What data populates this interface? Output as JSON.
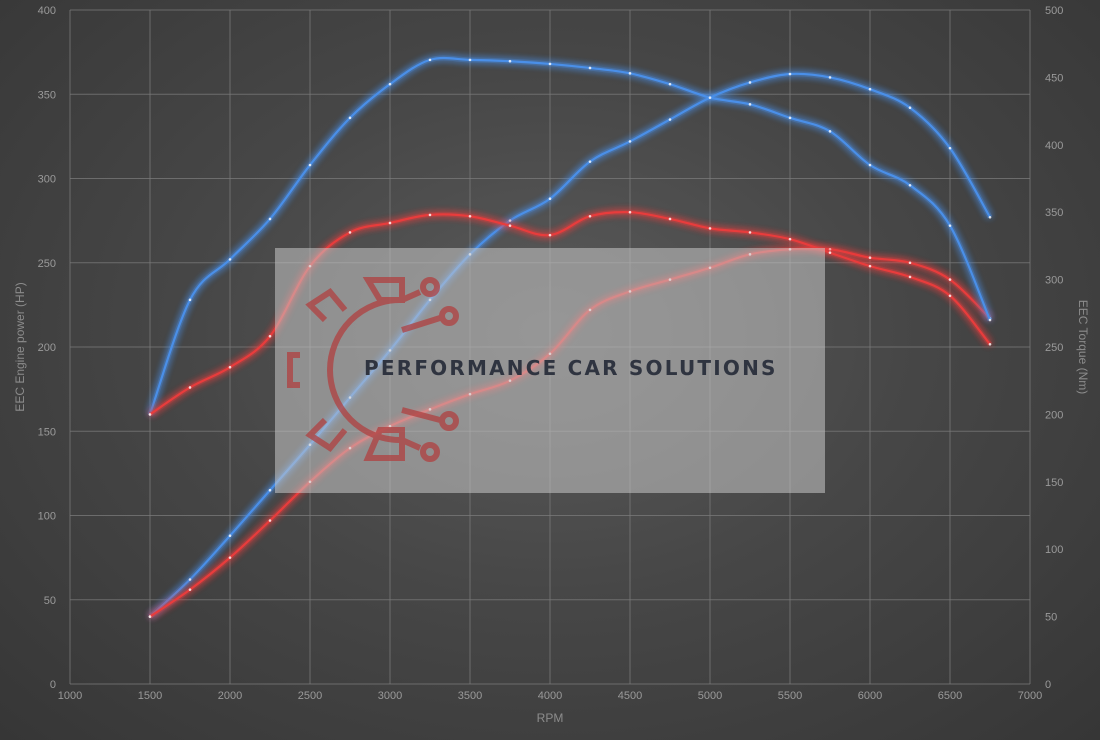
{
  "chart_data": {
    "type": "line",
    "xlabel": "RPM",
    "ylabel": "EEC Engine power (HP)",
    "y2label": "EEC Torque (Nm)",
    "xlim": [
      1000,
      7000
    ],
    "ylim": [
      0,
      400
    ],
    "y2lim": [
      0,
      500
    ],
    "x_ticks": [
      1000,
      1500,
      2000,
      2500,
      3000,
      3500,
      4000,
      4500,
      5000,
      5500,
      6000,
      6500,
      7000
    ],
    "y_ticks": [
      0,
      50,
      100,
      150,
      200,
      250,
      300,
      350,
      400
    ],
    "y2_ticks": [
      0,
      50,
      100,
      150,
      200,
      250,
      300,
      350,
      400,
      450,
      500
    ],
    "grid": true,
    "series": [
      {
        "axis": "left",
        "color": "#4a8fe8",
        "x": [
          1500,
          1750,
          2000,
          2250,
          2500,
          2750,
          3000,
          3250,
          3500,
          3750,
          4000,
          4250,
          4500,
          4750,
          5000,
          5250,
          5500,
          5750,
          6000,
          6250,
          6500,
          6750
        ],
        "values": [
          40,
          62,
          88,
          115,
          142,
          170,
          198,
          228,
          255,
          275,
          288,
          310,
          322,
          335,
          348,
          357,
          362,
          360,
          353,
          342,
          318,
          277
        ]
      },
      {
        "axis": "left",
        "color": "#e83c3c",
        "x": [
          1500,
          1750,
          2000,
          2250,
          2500,
          2750,
          3000,
          3250,
          3500,
          3750,
          4000,
          4250,
          4500,
          4750,
          5000,
          5250,
          5500,
          5750,
          6000,
          6250,
          6500,
          6750
        ],
        "values": [
          40,
          56,
          75,
          97,
          120,
          140,
          153,
          163,
          172,
          180,
          196,
          222,
          233,
          240,
          247,
          255,
          258,
          258,
          253,
          250,
          240,
          217
        ]
      },
      {
        "axis": "right",
        "color": "#4a8fe8",
        "x": [
          1500,
          1750,
          2000,
          2250,
          2500,
          2750,
          3000,
          3250,
          3500,
          3750,
          4000,
          4250,
          4500,
          4750,
          5000,
          5250,
          5500,
          5750,
          6000,
          6250,
          6500,
          6750
        ],
        "values": [
          200,
          285,
          315,
          345,
          385,
          420,
          445,
          463,
          463,
          462,
          460,
          457,
          453,
          445,
          435,
          430,
          420,
          410,
          385,
          370,
          340,
          270
        ]
      },
      {
        "axis": "right",
        "color": "#e83c3c",
        "x": [
          1500,
          1750,
          2000,
          2250,
          2500,
          2750,
          3000,
          3250,
          3500,
          3750,
          4000,
          4250,
          4500,
          4750,
          5000,
          5250,
          5500,
          5750,
          6000,
          6250,
          6500,
          6750
        ],
        "values": [
          200,
          220,
          235,
          258,
          310,
          335,
          342,
          348,
          347,
          340,
          333,
          347,
          350,
          345,
          338,
          335,
          330,
          320,
          310,
          302,
          288,
          252
        ]
      }
    ]
  },
  "watermark": {
    "text": "PERFORMANCE CAR SOLUTIONS"
  }
}
